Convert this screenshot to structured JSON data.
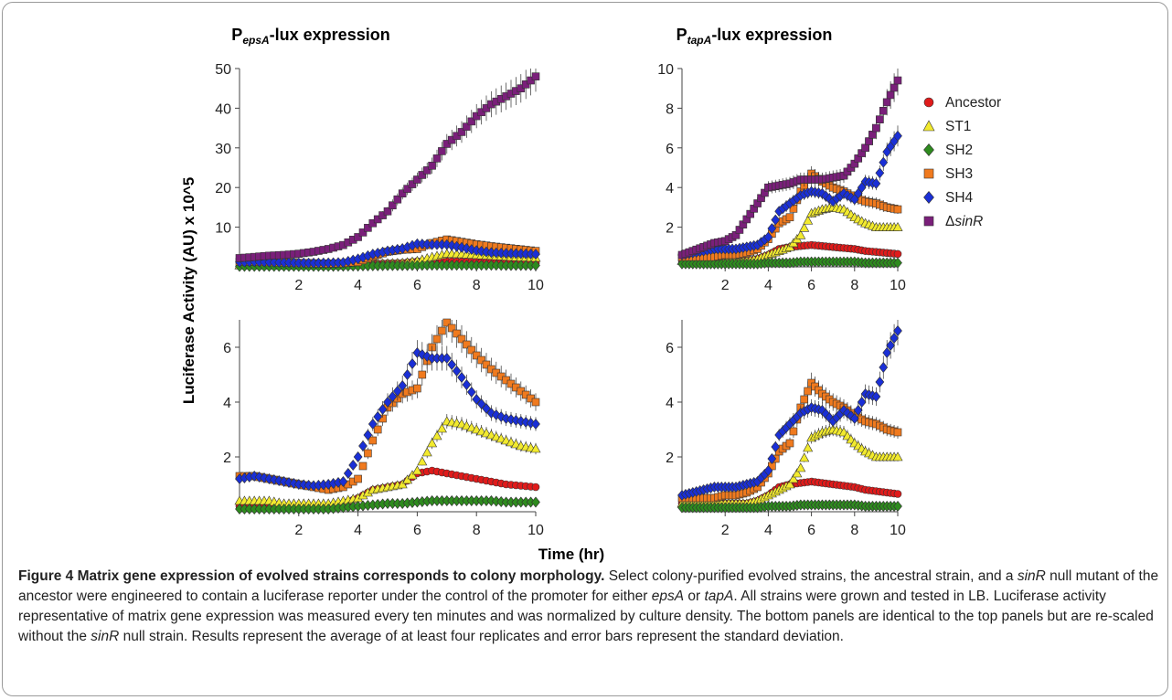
{
  "colors": {
    "Ancestor": "#e01b1b",
    "ST1": "#f2ea2e",
    "SH2": "#2e8b1e",
    "SH3": "#f07a1e",
    "SH4": "#1a2fd6",
    "sinR": "#7a1f7a"
  },
  "figure": {
    "panel_titles": [
      {
        "prefix": "P",
        "sub": "epsA",
        "suffix": "-lux expression"
      },
      {
        "prefix": "P",
        "sub": "tapA",
        "suffix": "-lux expression"
      }
    ],
    "ylabel": "Luciferase Activity (AU) x 10^5",
    "xlabel": "Time (hr)",
    "legend": [
      {
        "label": "Ancestor",
        "marker": "circle",
        "color_key": "Ancestor"
      },
      {
        "label": "ST1",
        "marker": "triangle",
        "color_key": "ST1"
      },
      {
        "label": "SH2",
        "marker": "diamond",
        "color_key": "SH2"
      },
      {
        "label": "SH3",
        "marker": "square",
        "color_key": "SH3"
      },
      {
        "label": "SH4",
        "marker": "diamond",
        "color_key": "SH4"
      },
      {
        "label": "ΔsinR",
        "marker": "square",
        "color_key": "sinR",
        "prefix": "Δ",
        "italic_part": "sinR"
      }
    ]
  },
  "chart_data": [
    {
      "type": "scatter",
      "title": "PepsA-lux expression",
      "xlim": [
        0,
        10
      ],
      "ylim": [
        0,
        50
      ],
      "xticks": [
        2,
        4,
        6,
        8,
        10
      ],
      "yticks": [
        10,
        20,
        30,
        40,
        50
      ],
      "series_keys": [
        "Ancestor",
        "ST1",
        "SH2",
        "SH3",
        "SH4",
        "sinR"
      ]
    },
    {
      "type": "scatter",
      "title": "PtapA-lux expression",
      "xlim": [
        0,
        10
      ],
      "ylim": [
        0,
        10
      ],
      "xticks": [
        2,
        4,
        6,
        8,
        10
      ],
      "yticks": [
        2,
        4,
        6,
        8,
        10
      ],
      "series_keys": [
        "Ancestor",
        "ST1",
        "SH2",
        "SH3",
        "SH4",
        "sinR"
      ]
    },
    {
      "type": "scatter",
      "title": "",
      "xlim": [
        0,
        10
      ],
      "ylim": [
        0,
        7
      ],
      "xticks": [
        2,
        4,
        6,
        8,
        10
      ],
      "yticks": [
        2,
        4,
        6
      ],
      "series_keys": [
        "Ancestor",
        "ST1",
        "SH2",
        "SH3",
        "SH4"
      ]
    },
    {
      "type": "scatter",
      "title": "",
      "xlim": [
        0,
        10
      ],
      "ylim": [
        0,
        7
      ],
      "xticks": [
        2,
        4,
        6,
        8,
        10
      ],
      "yticks": [
        2,
        4,
        6
      ],
      "series_keys": [
        "Ancestor",
        "ST1",
        "SH2",
        "SH3",
        "SH4"
      ]
    }
  ],
  "series": {
    "eps": {
      "x": [
        0,
        0.5,
        1,
        1.5,
        2,
        2.5,
        3,
        3.5,
        4,
        4.5,
        5,
        5.5,
        6,
        6.5,
        7,
        7.5,
        8,
        8.5,
        9,
        9.5,
        10
      ],
      "Ancestor": [
        0.2,
        0.2,
        0.2,
        0.2,
        0.2,
        0.2,
        0.2,
        0.3,
        0.5,
        0.8,
        0.9,
        1.0,
        1.4,
        1.5,
        1.4,
        1.3,
        1.2,
        1.1,
        1.0,
        0.95,
        0.9
      ],
      "ST1": [
        0.4,
        0.4,
        0.4,
        0.3,
        0.3,
        0.3,
        0.3,
        0.4,
        0.5,
        0.8,
        0.9,
        1.0,
        1.5,
        2.5,
        3.3,
        3.2,
        3.0,
        2.8,
        2.6,
        2.4,
        2.3
      ],
      "SH2": [
        0.1,
        0.1,
        0.1,
        0.1,
        0.1,
        0.1,
        0.1,
        0.15,
        0.2,
        0.25,
        0.3,
        0.3,
        0.35,
        0.4,
        0.4,
        0.4,
        0.4,
        0.4,
        0.35,
        0.35,
        0.35
      ],
      "SH3": [
        1.3,
        1.3,
        1.2,
        1.1,
        1.0,
        0.9,
        0.8,
        0.9,
        1.2,
        2.6,
        3.8,
        4.3,
        4.5,
        6.0,
        6.9,
        6.3,
        5.7,
        5.2,
        4.8,
        4.4,
        4.0
      ],
      "SH4": [
        1.2,
        1.3,
        1.2,
        1.1,
        1.0,
        0.95,
        1.0,
        1.1,
        2.0,
        3.2,
        4.0,
        4.6,
        5.8,
        5.6,
        5.6,
        4.9,
        4.1,
        3.6,
        3.4,
        3.3,
        3.2
      ],
      "sinR": [
        2.2,
        2.5,
        2.8,
        3.0,
        3.3,
        3.8,
        4.5,
        5.5,
        7.5,
        11,
        14,
        18.5,
        22,
        25.5,
        31,
        34,
        38,
        41,
        43,
        45,
        48
      ]
    },
    "tap": {
      "x": [
        0,
        0.5,
        1,
        1.5,
        2,
        2.5,
        3,
        3.5,
        4,
        4.5,
        5,
        5.5,
        6,
        6.5,
        7,
        7.5,
        8,
        8.5,
        9,
        9.5,
        10
      ],
      "Ancestor": [
        0.3,
        0.3,
        0.3,
        0.3,
        0.3,
        0.3,
        0.3,
        0.4,
        0.6,
        0.9,
        1.0,
        1.05,
        1.1,
        1.05,
        1.0,
        0.95,
        0.9,
        0.8,
        0.75,
        0.7,
        0.65
      ],
      "ST1": [
        0.3,
        0.3,
        0.3,
        0.3,
        0.3,
        0.3,
        0.3,
        0.4,
        0.6,
        0.8,
        1.0,
        1.6,
        2.7,
        2.9,
        3.0,
        2.9,
        2.5,
        2.2,
        2.0,
        2.0,
        2.0
      ],
      "SH2": [
        0.15,
        0.15,
        0.15,
        0.15,
        0.15,
        0.15,
        0.15,
        0.15,
        0.2,
        0.2,
        0.2,
        0.25,
        0.25,
        0.25,
        0.25,
        0.25,
        0.25,
        0.2,
        0.2,
        0.2,
        0.2
      ],
      "SH3": [
        0.5,
        0.5,
        0.5,
        0.5,
        0.6,
        0.6,
        0.7,
        0.9,
        1.4,
        2.2,
        2.5,
        3.8,
        4.7,
        4.3,
        4.0,
        3.8,
        3.5,
        3.3,
        3.2,
        3.0,
        2.9
      ],
      "SH4": [
        0.6,
        0.7,
        0.8,
        0.9,
        0.9,
        0.9,
        1.0,
        1.1,
        1.5,
        2.8,
        3.2,
        3.6,
        3.8,
        3.7,
        3.3,
        3.7,
        3.4,
        4.3,
        4.2,
        5.8,
        6.6
      ],
      "sinR": [
        0.6,
        0.8,
        1.0,
        1.2,
        1.3,
        1.6,
        2.4,
        3.2,
        4.0,
        4.1,
        4.2,
        4.4,
        4.4,
        4.4,
        4.5,
        4.6,
        5.2,
        6.0,
        7.0,
        8.3,
        9.4
      ]
    }
  },
  "caption": {
    "lead": "Figure 4 Matrix gene expression of evolved strains corresponds to colony morphology.",
    "segments": [
      {
        "t": " Select colony-purified evolved strains, the ancestral strain, and a "
      },
      {
        "t": "sinR",
        "i": true
      },
      {
        "t": " null mutant of the ancestor were engineered to contain a luciferase reporter under the control of the promoter for either "
      },
      {
        "t": "epsA",
        "i": true
      },
      {
        "t": " or "
      },
      {
        "t": "tapA",
        "i": true
      },
      {
        "t": ". All strains were grown and tested in LB. Luciferase activity representative of matrix gene expression was measured every ten minutes and was normalized by culture density. The bottom panels are identical to the top panels but are re-scaled without the "
      },
      {
        "t": "sinR",
        "i": true
      },
      {
        "t": " null strain. Results represent the average of at least four replicates and error bars represent the standard deviation."
      }
    ]
  }
}
